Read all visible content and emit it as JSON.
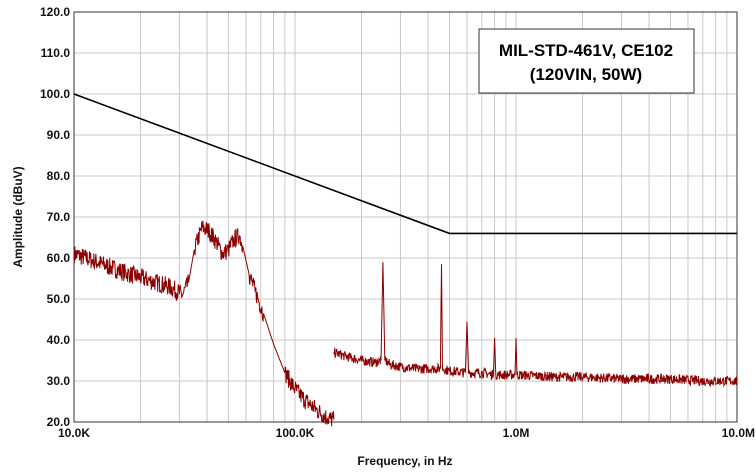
{
  "chart_data": {
    "type": "line",
    "title_box": {
      "line1": "MIL-STD-461V, CE102",
      "line2": "(120VIN, 50W)"
    },
    "xlabel": "Frequency, in Hz",
    "ylabel": "Amplitude (dBuV)",
    "x_scale": "log",
    "xlim": [
      10000,
      10000000
    ],
    "ylim": [
      20,
      120
    ],
    "grid": true,
    "x_ticks": [
      {
        "value": 10000,
        "label": "10.0K"
      },
      {
        "value": 100000,
        "label": "100.0K"
      },
      {
        "value": 1000000,
        "label": "1.0M"
      },
      {
        "value": 10000000,
        "label": "10.0M"
      }
    ],
    "y_ticks": [
      {
        "value": 20,
        "label": "20.0"
      },
      {
        "value": 30,
        "label": "30.0"
      },
      {
        "value": 40,
        "label": "40.0"
      },
      {
        "value": 50,
        "label": "50.0"
      },
      {
        "value": 60,
        "label": "60.0"
      },
      {
        "value": 70,
        "label": "70.0"
      },
      {
        "value": 80,
        "label": "80.0"
      },
      {
        "value": 90,
        "label": "90.0"
      },
      {
        "value": 100,
        "label": "100.0"
      },
      {
        "value": 110,
        "label": "110.0"
      },
      {
        "value": 120,
        "label": "120.0"
      }
    ],
    "series": [
      {
        "color": "#000000",
        "style": "limit",
        "points": [
          [
            10000,
            100
          ],
          [
            500000,
            66
          ],
          [
            10000000,
            66
          ]
        ]
      },
      {
        "color": "#8b0000",
        "style": "measured",
        "segments": [
          [
            [
              10000,
              61
            ],
            [
              12000,
              59.5
            ],
            [
              15000,
              57.5
            ],
            [
              18000,
              56
            ],
            [
              22000,
              54.5
            ],
            [
              27000,
              53
            ],
            [
              31000,
              51
            ],
            [
              33000,
              54
            ],
            [
              35000,
              62
            ],
            [
              38000,
              67.5
            ],
            [
              41000,
              66.5
            ],
            [
              44000,
              64
            ],
            [
              47000,
              61
            ],
            [
              50000,
              62
            ],
            [
              53000,
              64.5
            ],
            [
              56000,
              65.5
            ],
            [
              58000,
              63
            ],
            [
              62000,
              56
            ],
            [
              66000,
              52
            ],
            [
              72000,
              46.5
            ],
            [
              80000,
              39
            ],
            [
              90000,
              32
            ],
            [
              100000,
              28
            ],
            [
              110000,
              25.5
            ],
            [
              125000,
              23
            ],
            [
              140000,
              21
            ],
            [
              150000,
              20.5
            ]
          ],
          [
            [
              150000,
              37
            ],
            [
              170000,
              36
            ],
            [
              200000,
              35
            ],
            [
              230000,
              34.5
            ],
            [
              245000,
              35
            ],
            [
              250000,
              59
            ],
            [
              255000,
              35
            ],
            [
              270000,
              34
            ],
            [
              300000,
              33.5
            ],
            [
              350000,
              33
            ],
            [
              420000,
              33
            ],
            [
              455000,
              33
            ],
            [
              460000,
              58.5
            ],
            [
              465000,
              33
            ],
            [
              500000,
              32.5
            ],
            [
              590000,
              32
            ],
            [
              600000,
              44.5
            ],
            [
              610000,
              32
            ],
            [
              700000,
              32
            ],
            [
              790000,
              31.5
            ],
            [
              800000,
              40.5
            ],
            [
              810000,
              31.5
            ],
            [
              900000,
              31.5
            ],
            [
              990000,
              31.5
            ],
            [
              1000000,
              40.5
            ],
            [
              1010000,
              31.5
            ],
            [
              1500000,
              31
            ],
            [
              2000000,
              31
            ],
            [
              3000000,
              30.5
            ],
            [
              5000000,
              30.5
            ],
            [
              7000000,
              30
            ],
            [
              10000000,
              30
            ]
          ]
        ]
      }
    ]
  }
}
